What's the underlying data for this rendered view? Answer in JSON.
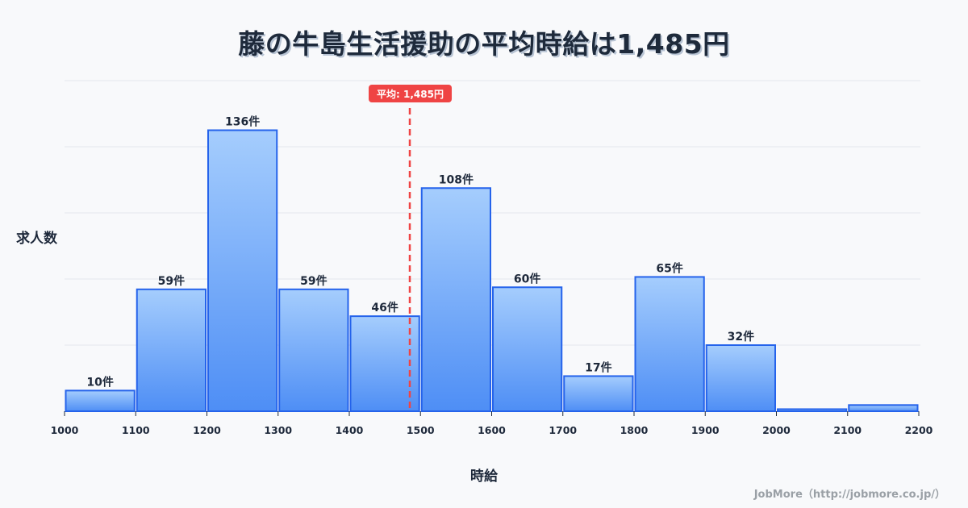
{
  "title": "藤の牛島生活援助の平均時給は1,485円",
  "chart_data": {
    "type": "bar",
    "title": "藤の牛島生活援助の平均時給は1,485円",
    "xlabel": "時給",
    "ylabel": "求人数",
    "categories": [
      "1000-1100",
      "1100-1200",
      "1200-1300",
      "1300-1400",
      "1400-1500",
      "1500-1600",
      "1600-1700",
      "1700-1800",
      "1800-1900",
      "1900-2000",
      "2000-2100",
      "2100-2200"
    ],
    "bin_edges": [
      1000,
      1100,
      1200,
      1300,
      1400,
      1500,
      1600,
      1700,
      1800,
      1900,
      2000,
      2100,
      2200
    ],
    "values": [
      10,
      59,
      136,
      59,
      46,
      108,
      60,
      17,
      65,
      32,
      1,
      3
    ],
    "value_labels": [
      "10件",
      "59件",
      "136件",
      "59件",
      "46件",
      "108件",
      "60件",
      "17件",
      "65件",
      "32件",
      "",
      ""
    ],
    "ylim": [
      0,
      160
    ],
    "y_gridlines": [
      32,
      64,
      96,
      128,
      160
    ],
    "grid": true,
    "mean": 1485,
    "mean_label": "平均: 1,485円",
    "colors": {
      "bar_top": "#a5cdfd",
      "bar_bottom": "#4e8ef5",
      "bar_border": "#2563eb",
      "mean_line": "#ef4444",
      "grid": "#e3e6ec"
    }
  },
  "axis": {
    "ylabel": "求人数",
    "xlabel": "時給"
  },
  "footer": {
    "credit": "JobMore（http://jobmore.co.jp/）"
  }
}
